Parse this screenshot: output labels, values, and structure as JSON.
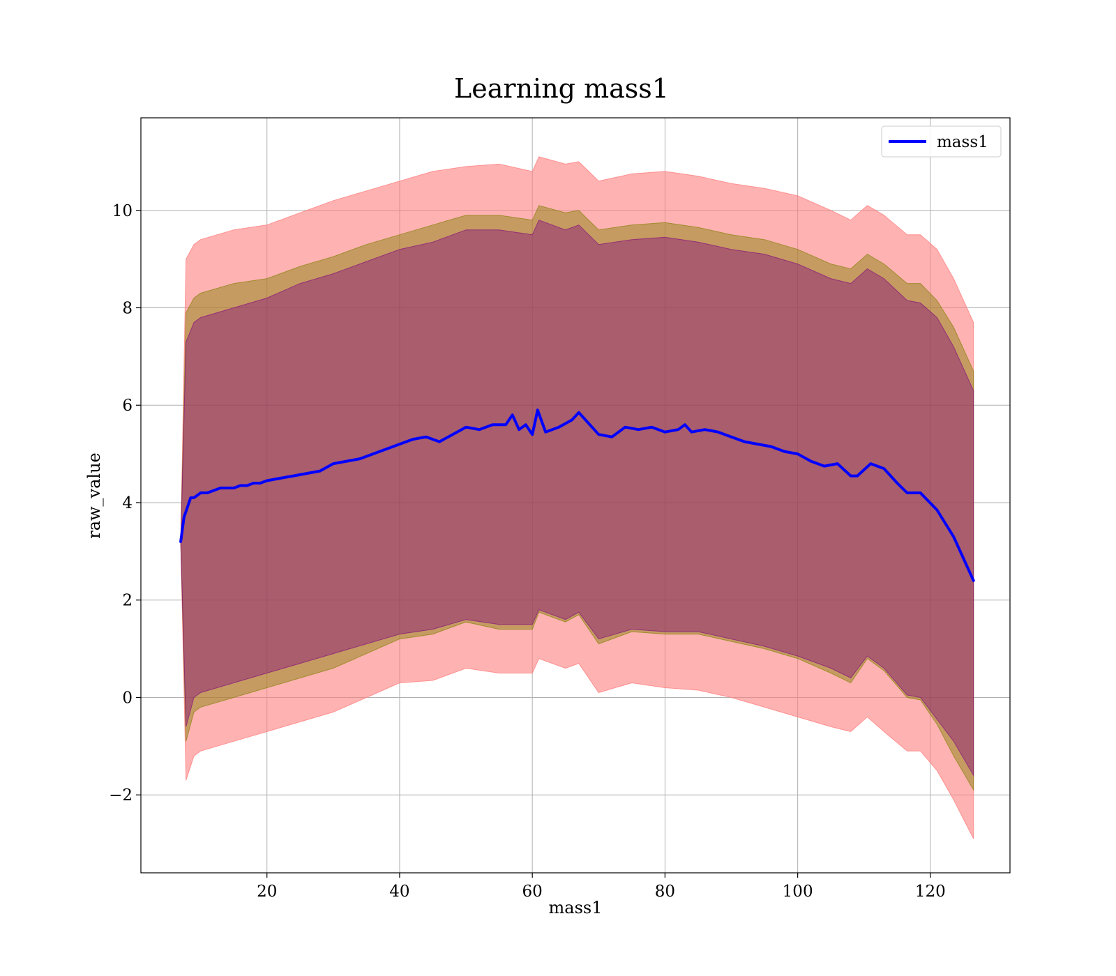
{
  "chart_data": {
    "type": "line",
    "title": "Learning mass1",
    "xlabel": "mass1",
    "ylabel": "raw_value",
    "xlim": [
      1.0,
      132.0
    ],
    "ylim": [
      -3.6,
      11.9
    ],
    "x_ticks": [
      20,
      40,
      60,
      80,
      100,
      120
    ],
    "y_ticks": [
      -2,
      0,
      2,
      4,
      6,
      8,
      10
    ],
    "x_tick_labels": [
      "20",
      "40",
      "60",
      "80",
      "100",
      "120"
    ],
    "y_tick_labels": [
      "−2",
      "0",
      "2",
      "4",
      "6",
      "8",
      "10"
    ],
    "grid": true,
    "legend_position": "top-right",
    "series": [
      {
        "name": "mass1",
        "color": "#0000ff",
        "points": [
          [
            7,
            3.2
          ],
          [
            7.5,
            3.7
          ],
          [
            8,
            3.9
          ],
          [
            8.5,
            4.1
          ],
          [
            9,
            4.1
          ],
          [
            10,
            4.2
          ],
          [
            11,
            4.2
          ],
          [
            12,
            4.25
          ],
          [
            13,
            4.3
          ],
          [
            14,
            4.3
          ],
          [
            15,
            4.3
          ],
          [
            16,
            4.35
          ],
          [
            17,
            4.35
          ],
          [
            18,
            4.4
          ],
          [
            19,
            4.4
          ],
          [
            20,
            4.45
          ],
          [
            22,
            4.5
          ],
          [
            24,
            4.55
          ],
          [
            26,
            4.6
          ],
          [
            28,
            4.65
          ],
          [
            30,
            4.8
          ],
          [
            32,
            4.85
          ],
          [
            34,
            4.9
          ],
          [
            36,
            5.0
          ],
          [
            38,
            5.1
          ],
          [
            40,
            5.2
          ],
          [
            42,
            5.3
          ],
          [
            44,
            5.35
          ],
          [
            46,
            5.25
          ],
          [
            48,
            5.4
          ],
          [
            50,
            5.55
          ],
          [
            52,
            5.5
          ],
          [
            54,
            5.6
          ],
          [
            56,
            5.6
          ],
          [
            57,
            5.8
          ],
          [
            58,
            5.5
          ],
          [
            59,
            5.6
          ],
          [
            60,
            5.4
          ],
          [
            60.8,
            5.9
          ],
          [
            62,
            5.45
          ],
          [
            64,
            5.55
          ],
          [
            66,
            5.7
          ],
          [
            67,
            5.85
          ],
          [
            68,
            5.7
          ],
          [
            70,
            5.4
          ],
          [
            72,
            5.35
          ],
          [
            74,
            5.55
          ],
          [
            76,
            5.5
          ],
          [
            78,
            5.55
          ],
          [
            80,
            5.45
          ],
          [
            82,
            5.5
          ],
          [
            83,
            5.6
          ],
          [
            84,
            5.45
          ],
          [
            86,
            5.5
          ],
          [
            88,
            5.45
          ],
          [
            90,
            5.35
          ],
          [
            92,
            5.25
          ],
          [
            94,
            5.2
          ],
          [
            96,
            5.15
          ],
          [
            98,
            5.05
          ],
          [
            100,
            5.0
          ],
          [
            102,
            4.85
          ],
          [
            104,
            4.75
          ],
          [
            106,
            4.8
          ],
          [
            108,
            4.55
          ],
          [
            109,
            4.55
          ],
          [
            111,
            4.8
          ],
          [
            113,
            4.7
          ],
          [
            115,
            4.4
          ],
          [
            116.5,
            4.2
          ],
          [
            118.5,
            4.2
          ],
          [
            121,
            3.85
          ],
          [
            123.5,
            3.3
          ],
          [
            126.5,
            2.4
          ]
        ]
      }
    ],
    "bands": [
      {
        "color": "#ff7f7f",
        "opacity": 0.6,
        "x": [
          7,
          7.8,
          9,
          10,
          15,
          20,
          25,
          30,
          35,
          40,
          45,
          50,
          55,
          60,
          61,
          65,
          67,
          70,
          75,
          80,
          85,
          90,
          95,
          100,
          105,
          108,
          110.5,
          113,
          116.5,
          118.5,
          121,
          123.5,
          126.5
        ],
        "lower": [
          3.2,
          -1.7,
          -1.2,
          -1.1,
          -0.9,
          -0.7,
          -0.5,
          -0.3,
          0.0,
          0.3,
          0.35,
          0.6,
          0.5,
          0.5,
          0.8,
          0.6,
          0.7,
          0.1,
          0.3,
          0.2,
          0.15,
          0.0,
          -0.2,
          -0.4,
          -0.6,
          -0.7,
          -0.4,
          -0.7,
          -1.1,
          -1.1,
          -1.5,
          -2.1,
          -2.9
        ],
        "upper": [
          3.2,
          9.0,
          9.3,
          9.4,
          9.6,
          9.7,
          9.95,
          10.2,
          10.4,
          10.6,
          10.8,
          10.9,
          10.95,
          10.8,
          11.1,
          10.95,
          11.0,
          10.6,
          10.75,
          10.8,
          10.7,
          10.55,
          10.45,
          10.3,
          10.0,
          9.8,
          10.1,
          9.9,
          9.5,
          9.5,
          9.2,
          8.6,
          7.7
        ]
      },
      {
        "color": "#7f7f00",
        "opacity": 0.45,
        "x": [
          7,
          7.8,
          9,
          10,
          15,
          20,
          25,
          30,
          35,
          40,
          45,
          50,
          55,
          60,
          61,
          65,
          67,
          70,
          75,
          80,
          85,
          90,
          95,
          100,
          105,
          108,
          110.5,
          113,
          116.5,
          118.5,
          121,
          123.5,
          126.5
        ],
        "lower": [
          3.2,
          -0.9,
          -0.3,
          -0.2,
          0.0,
          0.2,
          0.4,
          0.6,
          0.9,
          1.2,
          1.3,
          1.55,
          1.4,
          1.4,
          1.75,
          1.55,
          1.7,
          1.1,
          1.35,
          1.3,
          1.3,
          1.15,
          1.0,
          0.8,
          0.5,
          0.3,
          0.8,
          0.55,
          0.0,
          -0.05,
          -0.55,
          -1.2,
          -1.9
        ],
        "upper": [
          3.2,
          7.9,
          8.2,
          8.3,
          8.5,
          8.6,
          8.85,
          9.05,
          9.3,
          9.5,
          9.7,
          9.9,
          9.9,
          9.8,
          10.1,
          9.95,
          10.0,
          9.6,
          9.7,
          9.75,
          9.65,
          9.5,
          9.4,
          9.2,
          8.9,
          8.8,
          9.1,
          8.9,
          8.5,
          8.5,
          8.15,
          7.6,
          6.7
        ]
      },
      {
        "color": "#800080",
        "opacity": 0.4,
        "x": [
          7,
          7.8,
          9,
          10,
          15,
          20,
          25,
          30,
          35,
          40,
          45,
          50,
          55,
          60,
          61,
          65,
          67,
          70,
          75,
          80,
          85,
          90,
          95,
          100,
          105,
          108,
          110.5,
          113,
          116.5,
          118.5,
          121,
          123.5,
          126.5
        ],
        "lower": [
          3.2,
          -0.6,
          0.0,
          0.1,
          0.3,
          0.5,
          0.7,
          0.9,
          1.1,
          1.3,
          1.4,
          1.6,
          1.5,
          1.5,
          1.8,
          1.6,
          1.75,
          1.2,
          1.4,
          1.35,
          1.35,
          1.2,
          1.05,
          0.85,
          0.6,
          0.4,
          0.85,
          0.6,
          0.05,
          0.0,
          -0.45,
          -0.9,
          -1.6
        ],
        "upper": [
          3.2,
          7.3,
          7.7,
          7.8,
          8.0,
          8.2,
          8.5,
          8.7,
          8.95,
          9.2,
          9.35,
          9.6,
          9.6,
          9.5,
          9.8,
          9.6,
          9.7,
          9.3,
          9.4,
          9.45,
          9.35,
          9.2,
          9.1,
          8.9,
          8.6,
          8.5,
          8.8,
          8.6,
          8.15,
          8.1,
          7.8,
          7.2,
          6.3
        ]
      }
    ]
  }
}
